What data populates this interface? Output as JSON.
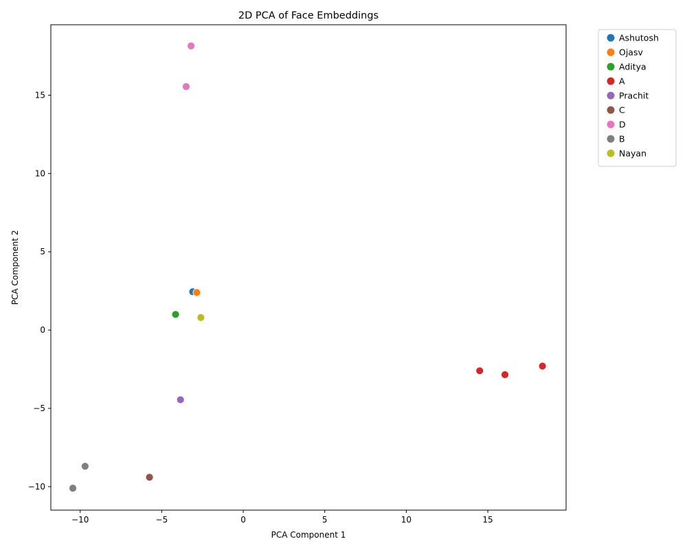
{
  "chart_data": {
    "type": "scatter",
    "title": "2D PCA of Face Embeddings",
    "xlabel": "PCA Component 1",
    "ylabel": "PCA Component 2",
    "xlim": [
      -11.8,
      19.8
    ],
    "ylim": [
      -11.5,
      19.5
    ],
    "xticks": [
      -10,
      -5,
      0,
      5,
      10,
      15
    ],
    "yticks": [
      -10,
      -5,
      0,
      5,
      10,
      15
    ],
    "grid": false,
    "legend_position": "outside-top-right",
    "series": [
      {
        "name": "Ashutosh",
        "color": "#1f77b4",
        "points": [
          [
            -3.1,
            2.45
          ]
        ]
      },
      {
        "name": "Ojasv",
        "color": "#ff7f0e",
        "points": [
          [
            -2.85,
            2.4
          ]
        ]
      },
      {
        "name": "Aditya",
        "color": "#2ca02c",
        "points": [
          [
            -4.15,
            1.0
          ]
        ]
      },
      {
        "name": "A",
        "color": "#d62728",
        "points": [
          [
            14.5,
            -2.6
          ],
          [
            16.05,
            -2.85
          ],
          [
            18.35,
            -2.3
          ]
        ]
      },
      {
        "name": "Prachit",
        "color": "#9467bd",
        "points": [
          [
            -3.85,
            -4.45
          ]
        ]
      },
      {
        "name": "C",
        "color": "#8c564b",
        "points": [
          [
            -5.75,
            -9.4
          ]
        ]
      },
      {
        "name": "D",
        "color": "#e377c2",
        "points": [
          [
            -3.2,
            18.15
          ],
          [
            -3.5,
            15.55
          ]
        ]
      },
      {
        "name": "B",
        "color": "#7f7f7f",
        "points": [
          [
            -9.7,
            -8.7
          ],
          [
            -10.45,
            -10.1
          ]
        ]
      },
      {
        "name": "Nayan",
        "color": "#bcbd22",
        "points": [
          [
            -2.6,
            0.8
          ]
        ]
      }
    ]
  }
}
